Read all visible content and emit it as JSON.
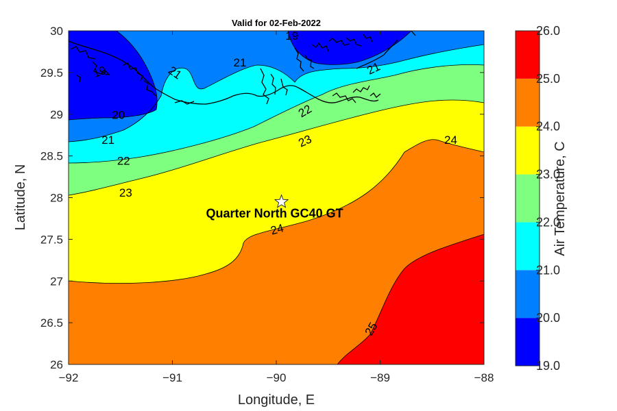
{
  "chart_data": {
    "type": "contour",
    "title": "Valid for 02-Feb-2022",
    "xlabel": "Longitude, E",
    "ylabel": "Latitude, N",
    "xlim": [
      -92,
      -88
    ],
    "ylim": [
      26,
      30
    ],
    "x_ticks": [
      "-92",
      "-91",
      "-90",
      "-89",
      "-88"
    ],
    "y_ticks": [
      "26",
      "26.5",
      "27",
      "27.5",
      "28",
      "28.5",
      "29",
      "29.5",
      "30"
    ],
    "colorbar": {
      "label": "Air Temperature, C",
      "ticks": [
        "19.0",
        "20.0",
        "21.0",
        "22.0",
        "23.0",
        "24.0",
        "25.0",
        "26.0"
      ],
      "levels": [
        19,
        20,
        21,
        22,
        23,
        24,
        25,
        26
      ],
      "colors": [
        "#0000ff",
        "#007fff",
        "#00ffff",
        "#7fff7f",
        "#ffff00",
        "#ff7f00",
        "#ff0000"
      ]
    },
    "contour_labels": [
      {
        "text": "19",
        "lon": -91.7,
        "lat": 29.5,
        "angle": -20
      },
      {
        "text": "19",
        "lon": -89.85,
        "lat": 29.93,
        "angle": 0
      },
      {
        "text": "20",
        "lon": -91.52,
        "lat": 28.98,
        "angle": 0
      },
      {
        "text": "21",
        "lon": -91.62,
        "lat": 28.68,
        "angle": 0
      },
      {
        "text": "21",
        "lon": -90.98,
        "lat": 29.49,
        "angle": 35
      },
      {
        "text": "21",
        "lon": -90.35,
        "lat": 29.61,
        "angle": 0
      },
      {
        "text": "21",
        "lon": -89.06,
        "lat": 29.54,
        "angle": -25
      },
      {
        "text": "22",
        "lon": -91.47,
        "lat": 28.43,
        "angle": 0
      },
      {
        "text": "22",
        "lon": -89.72,
        "lat": 29.03,
        "angle": -30
      },
      {
        "text": "23",
        "lon": -91.45,
        "lat": 28.05,
        "angle": 0
      },
      {
        "text": "23",
        "lon": -89.72,
        "lat": 28.67,
        "angle": -25
      },
      {
        "text": "24",
        "lon": -88.32,
        "lat": 28.68,
        "angle": 0
      },
      {
        "text": "24",
        "lon": -89.99,
        "lat": 27.61,
        "angle": -15
      },
      {
        "text": "25",
        "lon": -89.08,
        "lat": 26.42,
        "angle": -60
      }
    ],
    "station": {
      "name": "Quarter North GC40 GT",
      "lon": -89.95,
      "lat": 27.95,
      "marker": "star"
    }
  }
}
